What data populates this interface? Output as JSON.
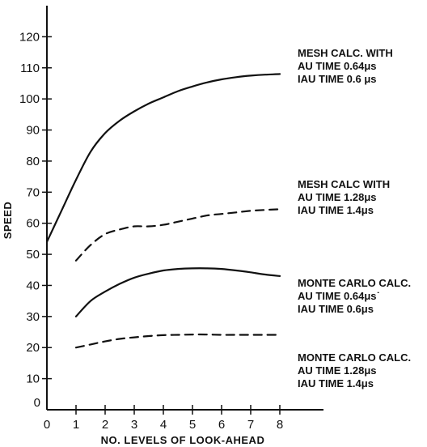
{
  "chart_data": {
    "type": "line",
    "title": "",
    "xlabel": "NO. LEVELS OF LOOK-AHEAD",
    "ylabel": "SPEED",
    "xlim": [
      0,
      9.5
    ],
    "ylim": [
      0,
      130
    ],
    "x_ticks": [
      "0",
      "1",
      "2",
      "3",
      "4",
      "5",
      "6",
      "7",
      "8"
    ],
    "y_ticks": [
      "0",
      "10",
      "20",
      "30",
      "40",
      "50",
      "60",
      "70",
      "80",
      "90",
      "100",
      "110",
      "120"
    ],
    "grid": false,
    "series": [
      {
        "style": "solid",
        "x": [
          0,
          0.5,
          1,
          1.5,
          2,
          2.5,
          3,
          3.5,
          4,
          4.5,
          5,
          5.5,
          6,
          6.5,
          7,
          7.5,
          8
        ],
        "values": [
          54,
          64,
          74,
          83,
          89,
          93,
          96,
          98.5,
          100.5,
          102.5,
          104,
          105.3,
          106.3,
          107,
          107.5,
          107.8,
          108
        ]
      },
      {
        "style": "dashed",
        "x": [
          1,
          1.5,
          2,
          2.5,
          3,
          3.5,
          4,
          4.5,
          5,
          5.5,
          6,
          6.5,
          7,
          7.5,
          8
        ],
        "values": [
          48,
          53,
          56.5,
          58,
          59,
          59,
          59.5,
          60.5,
          61.5,
          62.5,
          63,
          63.5,
          64,
          64.3,
          64.5
        ]
      },
      {
        "style": "solid",
        "x": [
          1,
          1.5,
          2,
          2.5,
          3,
          3.5,
          4,
          4.5,
          5,
          5.5,
          6,
          6.5,
          7,
          7.5,
          8
        ],
        "values": [
          30,
          35,
          38,
          40.5,
          42.5,
          43.8,
          44.8,
          45.3,
          45.5,
          45.5,
          45.3,
          44.8,
          44.2,
          43.5,
          43
        ]
      },
      {
        "style": "dashed",
        "x": [
          1,
          1.5,
          2,
          2.5,
          3,
          3.5,
          4,
          4.5,
          5,
          5.5,
          6,
          6.5,
          7,
          7.5,
          8
        ],
        "values": [
          20,
          21,
          22,
          22.8,
          23.3,
          23.7,
          24,
          24.1,
          24.2,
          24.2,
          24.1,
          24.1,
          24.1,
          24.1,
          24.1
        ]
      }
    ],
    "annotations": [
      {
        "lines": [
          "MESH CALC. WITH",
          "AU TIME 0.64μs",
          "IAU TIME 0.6 μs"
        ]
      },
      {
        "lines": [
          "MESH CALC WITH",
          "AU TIME 1.28μs",
          "IAU TIME 1.4μs"
        ]
      },
      {
        "lines": [
          "MONTE CARLO CALC.",
          "AU TIME 0.64μs˙",
          "IAU TIME 0.6μs"
        ]
      },
      {
        "lines": [
          "MONTE CARLO CALC.",
          "AU TIME 1.28μs",
          "IAU TIME 1.4μs"
        ]
      }
    ]
  }
}
